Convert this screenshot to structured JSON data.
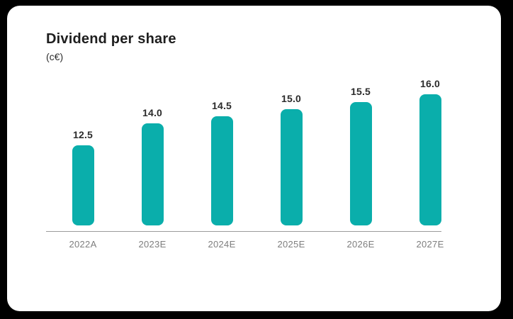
{
  "page": {
    "background_color": "#000000",
    "card_color": "#ffffff"
  },
  "chart": {
    "title": "Dividend per share",
    "subtitle": "(c€)"
  },
  "chart_data": {
    "type": "bar",
    "title": "Dividend per share",
    "subtitle": "(c€)",
    "unit": "c€",
    "categories": [
      "2022A",
      "2023E",
      "2024E",
      "2025E",
      "2026E",
      "2027E"
    ],
    "values": [
      12.5,
      14.0,
      14.5,
      15.0,
      15.5,
      16.0
    ],
    "value_labels": [
      "12.5",
      "14.0",
      "14.5",
      "15.0",
      "15.5",
      "16.0"
    ],
    "xlabel": "",
    "ylabel": "",
    "ylim": [
      7,
      16.5
    ],
    "grid": false,
    "legend": false,
    "bar_color": "#0aaeab",
    "value_label_color": "#2b2b2b",
    "tick_label_color": "#7e7e7e",
    "axis_line_color": "#9b9b9b"
  }
}
